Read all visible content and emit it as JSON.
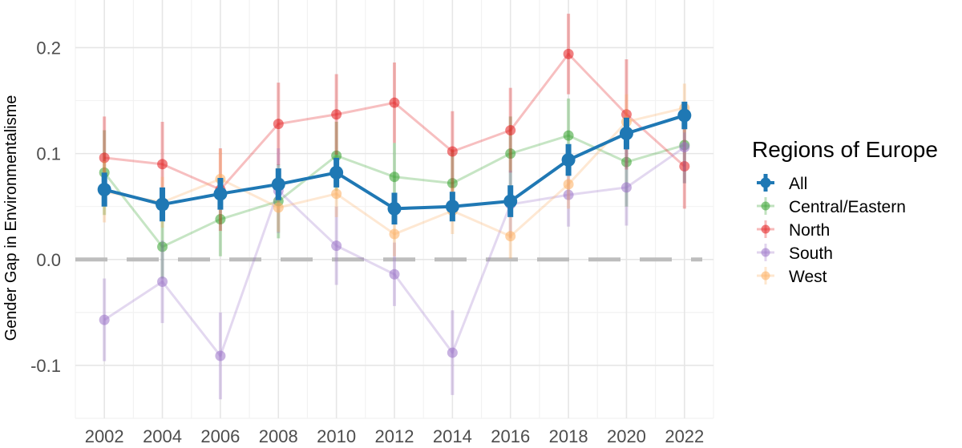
{
  "chart_data": {
    "type": "line",
    "title": "",
    "xlabel": "",
    "ylabel": "Gender Gap in Environmentalisme",
    "x": [
      2002,
      2004,
      2006,
      2008,
      2010,
      2012,
      2014,
      2016,
      2018,
      2020,
      2022
    ],
    "xlim": [
      2001,
      2023
    ],
    "ylim": [
      -0.15,
      0.245
    ],
    "y_ticks": [
      -0.1,
      0.0,
      0.1,
      0.2
    ],
    "y_tick_labels": [
      "-0.1",
      "0.0",
      "0.1",
      "0.2"
    ],
    "x_tick_labels": [
      "2002",
      "2004",
      "2006",
      "2008",
      "2010",
      "2012",
      "2014",
      "2016",
      "2018",
      "2020",
      "2022"
    ],
    "reference_line": {
      "y": 0,
      "style": "dashed",
      "color": "#bdbdbd"
    },
    "grid": true,
    "legend": {
      "title": "Regions of Europe",
      "position": "right"
    },
    "series": [
      {
        "name": "Central/Eastern",
        "color": "#33a02c",
        "values": [
          0.082,
          0.012,
          0.038,
          0.055,
          0.098,
          0.078,
          0.072,
          0.1,
          0.117,
          0.092,
          0.108
        ],
        "lower": [
          0.042,
          -0.018,
          0.003,
          0.02,
          0.065,
          0.045,
          0.04,
          0.065,
          0.082,
          0.05,
          0.072
        ],
        "upper": [
          0.122,
          0.042,
          0.073,
          0.09,
          0.13,
          0.11,
          0.104,
          0.135,
          0.152,
          0.134,
          0.144
        ]
      },
      {
        "name": "North",
        "color": "#e31a1c",
        "values": [
          0.096,
          0.09,
          0.066,
          0.128,
          0.137,
          0.148,
          0.102,
          0.122,
          0.194,
          0.137,
          0.088
        ],
        "lower": [
          0.057,
          0.05,
          0.027,
          0.089,
          0.099,
          0.11,
          0.064,
          0.082,
          0.156,
          0.085,
          0.048
        ],
        "upper": [
          0.135,
          0.13,
          0.105,
          0.167,
          0.175,
          0.186,
          0.14,
          0.162,
          0.232,
          0.189,
          0.128
        ]
      },
      {
        "name": "South",
        "color": "#9b72c8",
        "values": [
          -0.057,
          -0.021,
          -0.091,
          0.065,
          0.013,
          -0.014,
          -0.088,
          0.052,
          0.061,
          0.068,
          0.106
        ],
        "lower": [
          -0.096,
          -0.06,
          -0.132,
          0.025,
          -0.024,
          -0.044,
          -0.128,
          0.02,
          0.031,
          0.032,
          0.072
        ],
        "upper": [
          -0.018,
          0.018,
          -0.05,
          0.105,
          0.05,
          0.016,
          -0.048,
          0.084,
          0.091,
          0.104,
          0.14
        ]
      },
      {
        "name": "West",
        "color": "#fdae61",
        "values": [
          0.064,
          0.054,
          0.076,
          0.049,
          0.062,
          0.024,
          0.046,
          0.022,
          0.071,
          0.13,
          0.143
        ],
        "lower": [
          0.035,
          0.03,
          0.048,
          0.026,
          0.04,
          0.003,
          0.024,
          0.001,
          0.048,
          0.104,
          0.12
        ],
        "upper": [
          0.093,
          0.078,
          0.104,
          0.072,
          0.084,
          0.045,
          0.068,
          0.043,
          0.094,
          0.156,
          0.166
        ]
      },
      {
        "name": "All",
        "color": "#1f78b4",
        "values": [
          0.066,
          0.052,
          0.062,
          0.071,
          0.082,
          0.048,
          0.05,
          0.055,
          0.094,
          0.119,
          0.136
        ],
        "lower": [
          0.05,
          0.036,
          0.047,
          0.056,
          0.068,
          0.033,
          0.036,
          0.04,
          0.079,
          0.104,
          0.123
        ],
        "upper": [
          0.082,
          0.068,
          0.077,
          0.086,
          0.096,
          0.063,
          0.064,
          0.07,
          0.109,
          0.134,
          0.149
        ]
      }
    ],
    "legend_order": [
      "All",
      "Central/Eastern",
      "North",
      "South",
      "West"
    ]
  }
}
